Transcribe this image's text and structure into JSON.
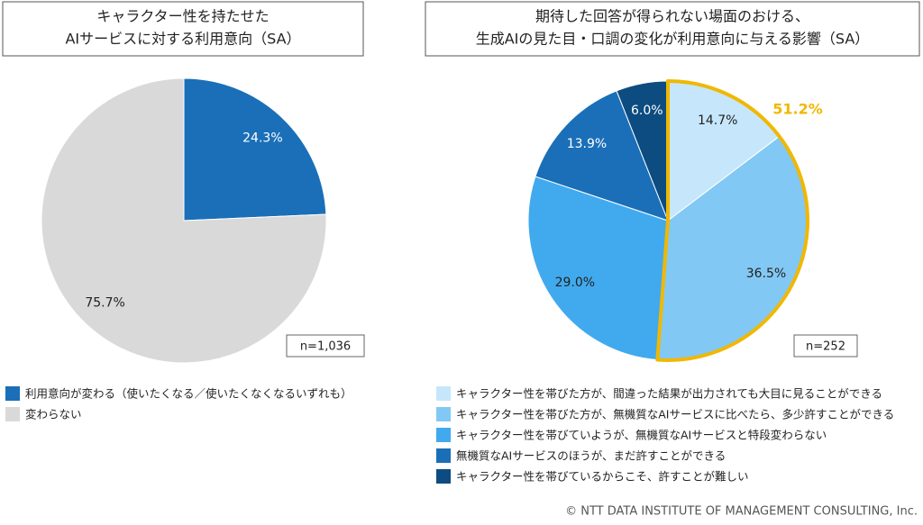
{
  "chart_data": [
    {
      "type": "pie",
      "title": [
        "キャラクター性を持たせた",
        "AIサービスに対する利用意向（SA）"
      ],
      "categories": [
        "利用意向が変わる（使いたくなる／使いたくなくなるいずれも）",
        "変わらない"
      ],
      "values": [
        24.3,
        75.7
      ],
      "value_labels": [
        "24.3%",
        "75.7%"
      ],
      "colors": [
        "#1a6fb8",
        "#d9d9d9"
      ],
      "note": "n=1,036"
    },
    {
      "type": "pie",
      "title": [
        "期待した回答が得られない場面のおける、",
        "生成AIの見た目・口調の変化が利用意向に与える影響（SA）"
      ],
      "categories": [
        "キャラクター性を帯びた方が、間違った結果が出力されても大目に見ることができる",
        "キャラクター性を帯びた方が、無機質なAIサービスに比べたら、多少許すことができる",
        "キャラクター性を帯びていようが、無機質なAIサービスと特段変わらない",
        "無機質なAIサービスのほうが、まだ許すことができる",
        "キャラクター性を帯びているからこそ、許すことが難しい"
      ],
      "values": [
        14.7,
        36.5,
        29.0,
        13.9,
        6.0
      ],
      "value_labels": [
        "14.7%",
        "36.5%",
        "29.0%",
        "13.9%",
        "6.0%"
      ],
      "colors": [
        "#c6e7fb",
        "#82c8f4",
        "#41aaee",
        "#1a6fb8",
        "#0d4c80"
      ],
      "highlight": {
        "value": 51.2,
        "label": "51.2%",
        "color": "#f0b800"
      },
      "note": "n=252"
    }
  ],
  "footer": "© NTT DATA INSTITUTE OF MANAGEMENT CONSULTING, Inc."
}
